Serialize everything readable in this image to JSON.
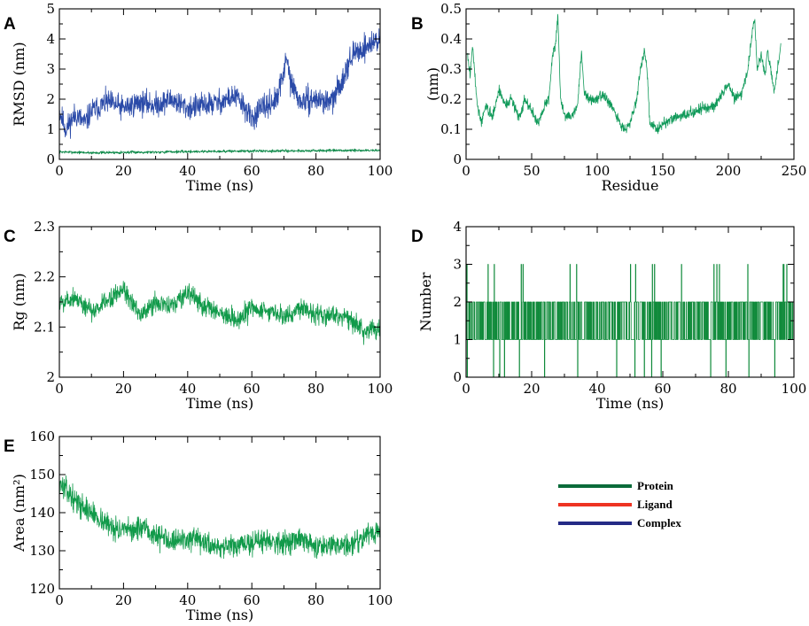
{
  "figure": {
    "legend": [
      {
        "label": "Protein",
        "color": "#0b6b3a"
      },
      {
        "label": "Ligand",
        "color": "#ee3322"
      },
      {
        "label": "Complex",
        "color": "#242a86"
      }
    ]
  },
  "chart_data": [
    {
      "id": "A",
      "panel_letter": "A",
      "type": "line",
      "title": "",
      "xlabel": "Time (ns)",
      "ylabel": "RMSD (nm)",
      "xlim": [
        0,
        100
      ],
      "ylim": [
        0,
        5
      ],
      "xticks": [
        0,
        20,
        40,
        60,
        80,
        100
      ],
      "yticks": [
        0,
        1,
        2,
        3,
        4,
        5
      ],
      "series": [
        {
          "name": "Complex",
          "color": "#2a4aa8",
          "x": [
            0,
            2,
            5,
            8,
            10,
            15,
            20,
            25,
            30,
            35,
            40,
            45,
            50,
            55,
            58,
            60,
            62,
            65,
            68,
            70,
            71,
            72,
            75,
            80,
            85,
            88,
            90,
            92,
            95,
            98,
            100
          ],
          "y": [
            1.6,
            1.0,
            1.5,
            1.2,
            1.6,
            1.9,
            1.7,
            1.9,
            1.8,
            2.0,
            1.7,
            1.8,
            1.9,
            2.1,
            1.7,
            1.3,
            1.6,
            1.8,
            2.0,
            3.0,
            3.3,
            2.6,
            1.9,
            2.0,
            1.9,
            2.6,
            3.2,
            3.5,
            3.7,
            3.9,
            4.0
          ],
          "noise": 0.35,
          "seed": 11
        },
        {
          "name": "Protein",
          "color": "#0f8a4a",
          "x": [
            0,
            10,
            50,
            100
          ],
          "y": [
            0.25,
            0.22,
            0.27,
            0.3
          ],
          "noise": 0.04,
          "seed": 7
        }
      ]
    },
    {
      "id": "B",
      "panel_letter": "B",
      "type": "line",
      "title": "",
      "xlabel": "Residue",
      "ylabel": "(nm)",
      "xlim": [
        0,
        250
      ],
      "ylim": [
        0,
        0.5
      ],
      "xticks": [
        0,
        50,
        100,
        150,
        200,
        250
      ],
      "yticks": [
        0,
        0.1,
        0.2,
        0.3,
        0.4,
        0.5
      ],
      "series": [
        {
          "name": "Protein",
          "color": "#119a5a",
          "x": [
            1,
            3,
            5,
            8,
            10,
            12,
            15,
            20,
            25,
            30,
            35,
            40,
            45,
            50,
            55,
            60,
            63,
            66,
            68,
            70,
            72,
            75,
            80,
            85,
            88,
            90,
            95,
            100,
            105,
            110,
            115,
            120,
            125,
            130,
            133,
            136,
            138,
            140,
            145,
            150,
            160,
            170,
            180,
            190,
            195,
            200,
            205,
            210,
            215,
            218,
            220,
            222,
            225,
            228,
            230,
            235,
            240
          ],
          "y": [
            0.35,
            0.28,
            0.38,
            0.2,
            0.15,
            0.12,
            0.18,
            0.14,
            0.23,
            0.18,
            0.2,
            0.14,
            0.2,
            0.16,
            0.12,
            0.18,
            0.2,
            0.35,
            0.38,
            0.48,
            0.2,
            0.15,
            0.14,
            0.18,
            0.36,
            0.22,
            0.2,
            0.2,
            0.22,
            0.18,
            0.14,
            0.1,
            0.12,
            0.2,
            0.3,
            0.36,
            0.3,
            0.12,
            0.1,
            0.12,
            0.14,
            0.15,
            0.17,
            0.18,
            0.22,
            0.25,
            0.2,
            0.22,
            0.3,
            0.42,
            0.47,
            0.3,
            0.35,
            0.28,
            0.36,
            0.22,
            0.38
          ],
          "noise": 0.015,
          "seed": 3
        }
      ]
    },
    {
      "id": "C",
      "panel_letter": "C",
      "type": "line",
      "title": "",
      "xlabel": "Time (ns)",
      "ylabel": "Rg (nm)",
      "xlim": [
        0,
        100
      ],
      "ylim": [
        2.0,
        2.3
      ],
      "xticks": [
        0,
        20,
        40,
        60,
        80,
        100
      ],
      "yticks": [
        2,
        2.1,
        2.2,
        2.3
      ],
      "series": [
        {
          "name": "Protein",
          "color": "#119a4a",
          "x": [
            0,
            5,
            10,
            15,
            20,
            25,
            30,
            35,
            40,
            45,
            50,
            55,
            60,
            65,
            70,
            75,
            80,
            85,
            90,
            95,
            100
          ],
          "y": [
            2.15,
            2.16,
            2.13,
            2.15,
            2.18,
            2.12,
            2.15,
            2.14,
            2.17,
            2.14,
            2.13,
            2.11,
            2.14,
            2.13,
            2.12,
            2.14,
            2.13,
            2.12,
            2.12,
            2.09,
            2.1
          ],
          "noise": 0.018,
          "seed": 5
        }
      ]
    },
    {
      "id": "D",
      "panel_letter": "D",
      "type": "line",
      "title": "",
      "xlabel": "Time (ns)",
      "ylabel": "Number",
      "xlim": [
        0,
        100
      ],
      "ylim": [
        0,
        4
      ],
      "xticks": [
        0,
        20,
        40,
        60,
        80,
        100
      ],
      "yticks": [
        0,
        1,
        2,
        3,
        4
      ],
      "series": [
        {
          "name": "Protein",
          "color": "#0f8a3a",
          "x": [
            0,
            100
          ],
          "y": [
            1,
            2
          ],
          "step_values": [
            0,
            1,
            2,
            3
          ],
          "step_weights": [
            0.02,
            0.5,
            0.46,
            0.02
          ],
          "noise": 0,
          "seed": 9
        }
      ]
    },
    {
      "id": "E",
      "panel_letter": "E",
      "type": "line",
      "title": "",
      "xlabel": "Time (ns)",
      "ylabel": "Area (nm²)",
      "xlim": [
        0,
        100
      ],
      "ylim": [
        120,
        160
      ],
      "xticks": [
        0,
        20,
        40,
        60,
        80,
        100
      ],
      "yticks": [
        120,
        130,
        140,
        150,
        160
      ],
      "series": [
        {
          "name": "Protein",
          "color": "#119a4a",
          "x": [
            0,
            2,
            5,
            10,
            15,
            20,
            25,
            30,
            35,
            40,
            45,
            50,
            55,
            60,
            65,
            70,
            75,
            80,
            85,
            90,
            95,
            100
          ],
          "y": [
            148,
            146,
            143,
            140,
            137,
            135,
            136,
            134,
            133,
            133,
            132,
            131,
            131,
            132,
            133,
            132,
            133,
            131,
            132,
            131,
            134,
            135
          ],
          "noise": 2.6,
          "seed": 13
        }
      ]
    }
  ]
}
